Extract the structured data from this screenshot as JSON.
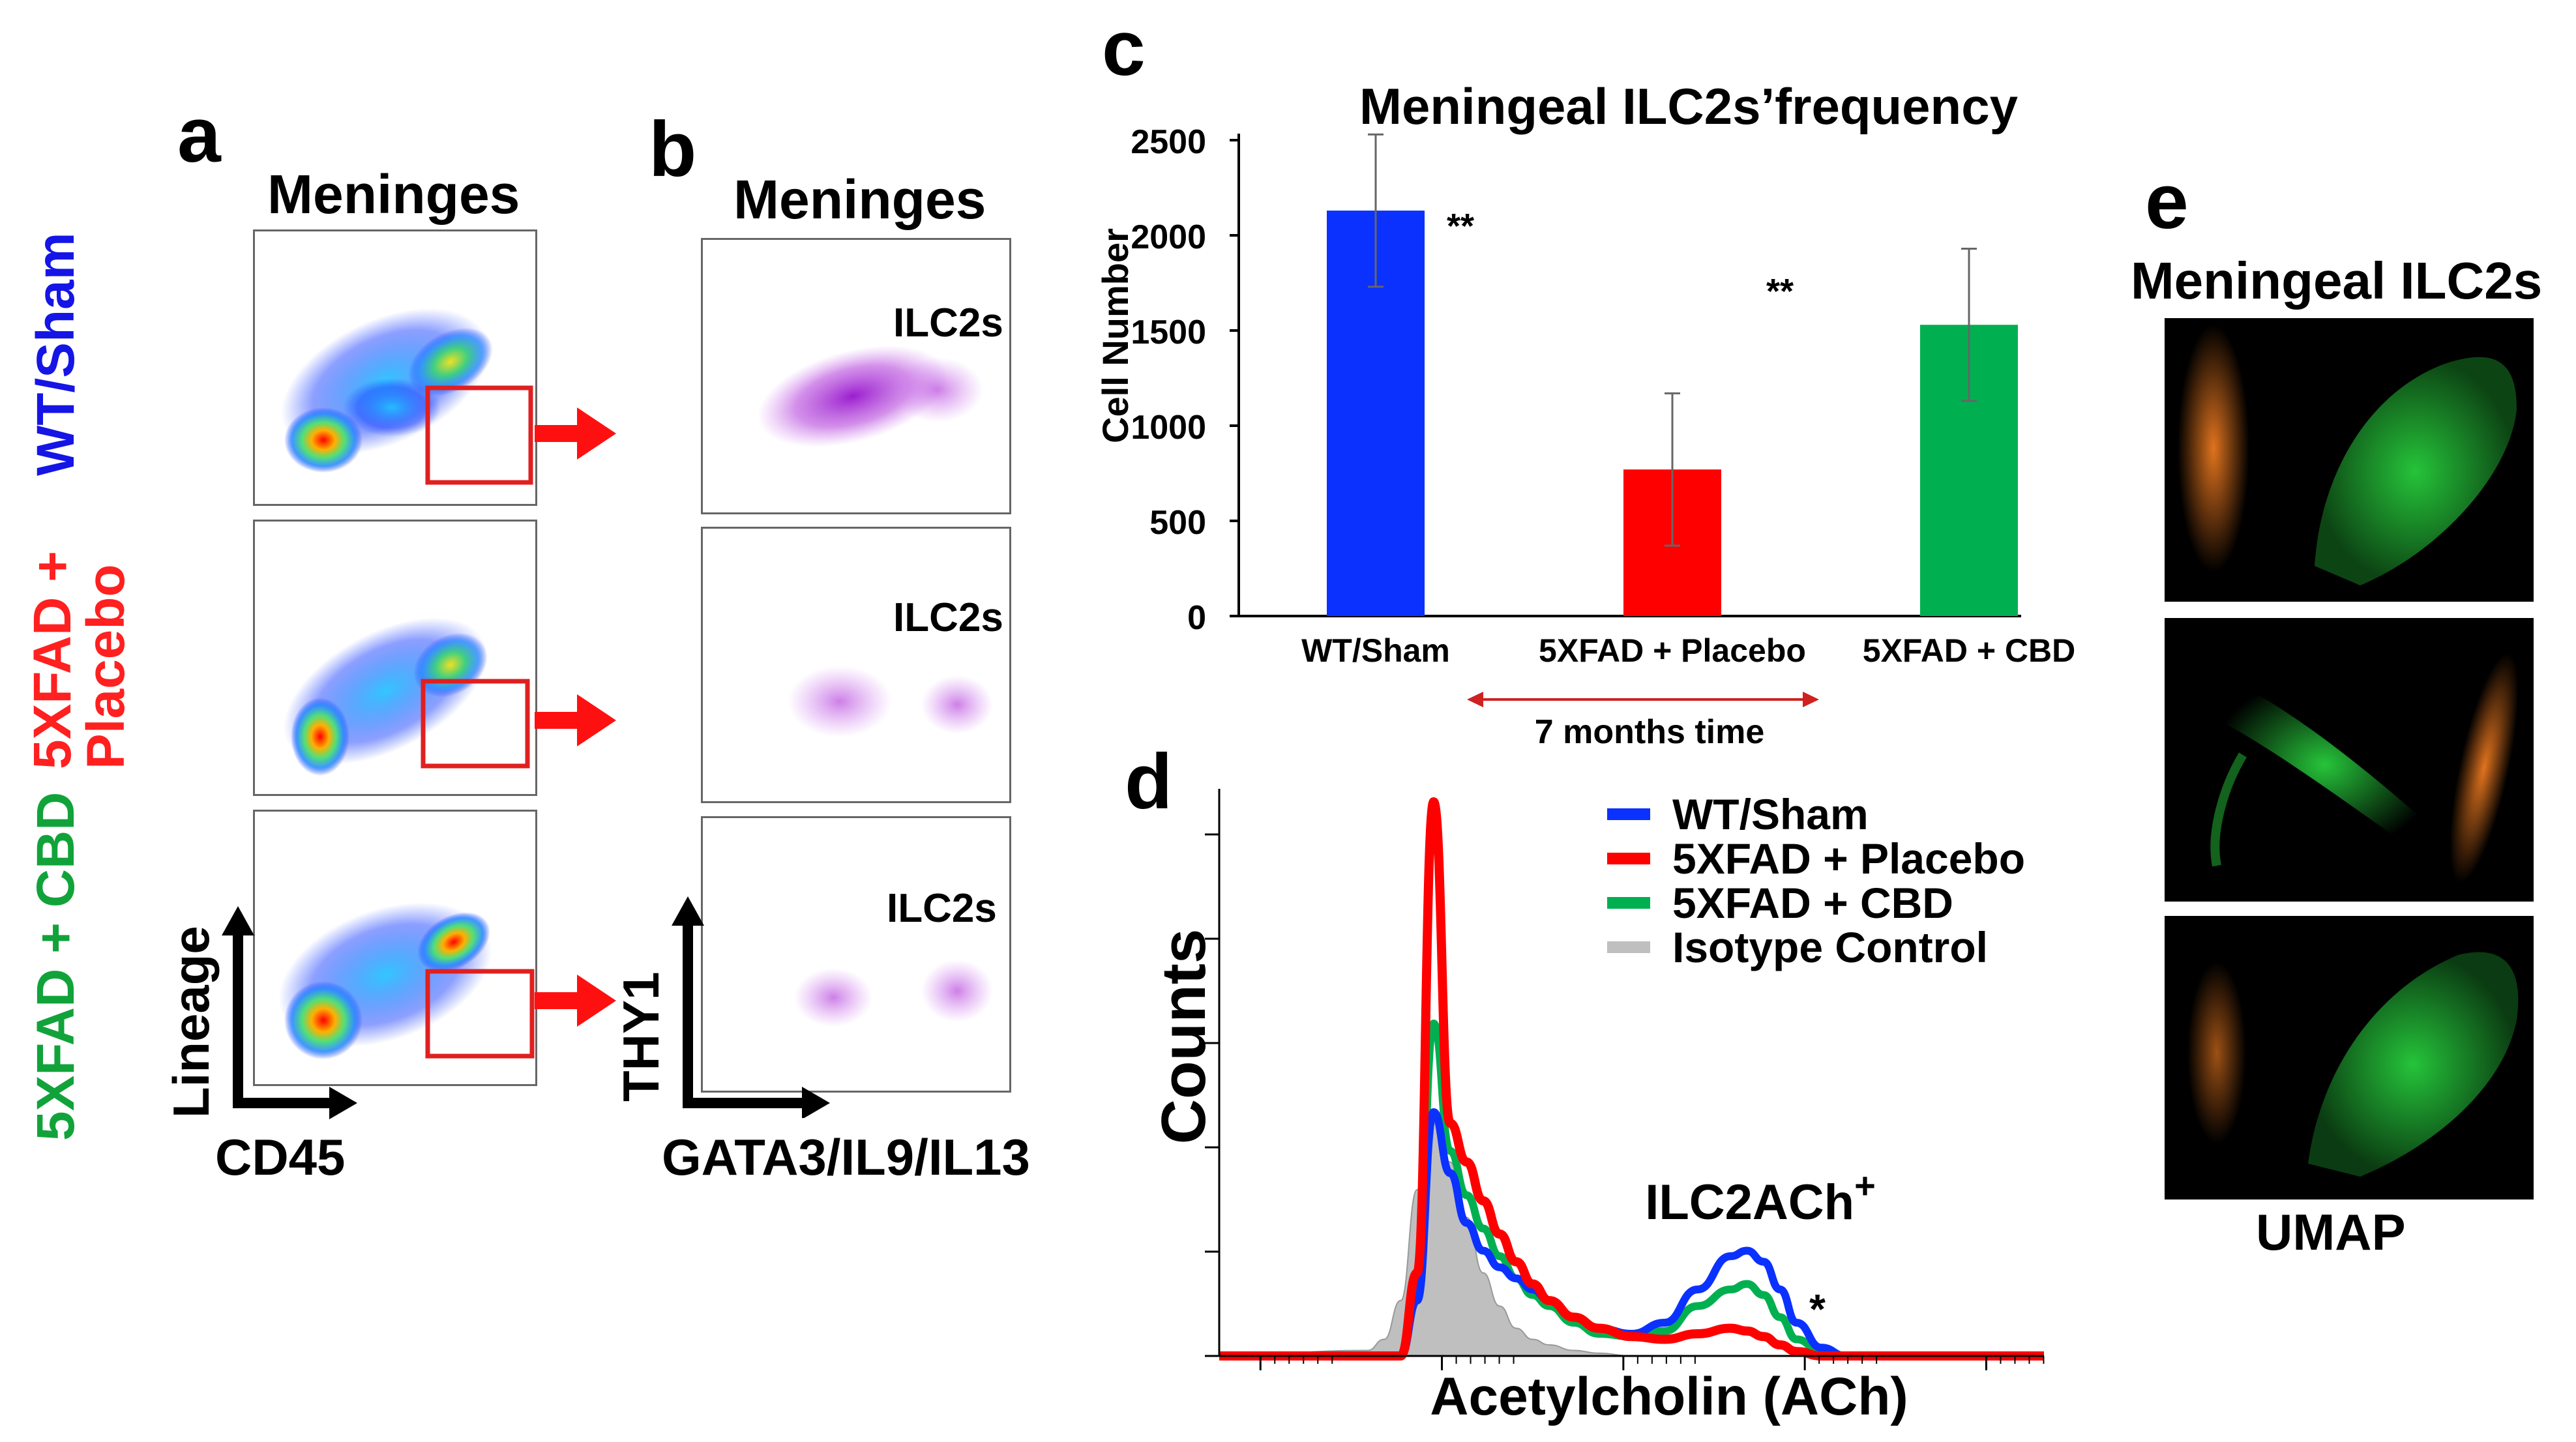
{
  "panels": {
    "a": {
      "letter": "a",
      "title": "Meninges",
      "x_axis": "CD45",
      "y_axis": "Lineage"
    },
    "b": {
      "letter": "b",
      "title": "Meninges",
      "x_axis": "GATA3/IL9/IL13",
      "y_axis": "THY1",
      "gate_label": "ILC2s"
    },
    "c": {
      "letter": "c"
    },
    "d": {
      "letter": "d"
    },
    "e": {
      "letter": "e",
      "title": "Meningeal ILC2s",
      "x_axis": "UMAP"
    }
  },
  "groups": [
    {
      "label_line1": "WT/Sham",
      "label_line2": "",
      "color": "#1515e6"
    },
    {
      "label_line1": "5XFAD +",
      "label_line2": "Placebo",
      "color": "#ff2020"
    },
    {
      "label_line1": "5XFAD + CBD",
      "label_line2": "",
      "color": "#11a33a"
    }
  ],
  "colors": {
    "blue": "#0b31ff",
    "red": "#ff0000",
    "green": "#00b050",
    "gray": "#bfbfbf",
    "gate": "#e02020",
    "purple": "#a33cd6",
    "umap_orange": "#e0731e",
    "umap_green": "#26c43a"
  },
  "chart_data": [
    {
      "type": "bar",
      "title": "Meningeal ILC2s’frequency",
      "ylabel": "Cell Number",
      "xlabel": "",
      "ylim": [
        0,
        2500
      ],
      "yticks": [
        0,
        500,
        1000,
        1500,
        2000,
        2500
      ],
      "categories": [
        "WT/Sham",
        "5XFAD + Placebo",
        "5XFAD + CBD"
      ],
      "values": [
        2130,
        770,
        1530
      ],
      "errors": [
        400,
        400,
        400
      ],
      "bar_colors": [
        "#0b31ff",
        "#ff0000",
        "#00b050"
      ],
      "significance": [
        {
          "label": "**",
          "between": [
            "WT/Sham",
            "5XFAD + Placebo"
          ]
        },
        {
          "label": "**",
          "between": [
            "5XFAD + Placebo",
            "5XFAD + CBD"
          ]
        }
      ],
      "annotation": "7 months time"
    },
    {
      "type": "line",
      "title": "",
      "xlabel": "Acetylcholin (ACh)",
      "ylabel": "Counts",
      "peak_label": "ILC2ACh",
      "peak_label_sup": "+",
      "significance": "*",
      "x": [
        0.0,
        0.18,
        0.2,
        0.22,
        0.24,
        0.26,
        0.28,
        0.3,
        0.32,
        0.34,
        0.36,
        0.38,
        0.4,
        0.43,
        0.46,
        0.5,
        0.54,
        0.58,
        0.62,
        0.64,
        0.66,
        0.68,
        0.7,
        0.73,
        0.76,
        0.8,
        0.88,
        1.0
      ],
      "series": [
        {
          "name": "WT/Sham",
          "color": "#0b31ff",
          "values": [
            0,
            0,
            0,
            0,
            0.1,
            0.44,
            0.33,
            0.24,
            0.19,
            0.16,
            0.14,
            0.12,
            0.1,
            0.07,
            0.05,
            0.04,
            0.06,
            0.12,
            0.18,
            0.19,
            0.17,
            0.12,
            0.06,
            0.015,
            0,
            0,
            0,
            0
          ]
        },
        {
          "name": "5XFAD + Placebo",
          "color": "#ff0000",
          "values": [
            0,
            0,
            0,
            0,
            0.15,
            1.0,
            0.42,
            0.35,
            0.28,
            0.22,
            0.17,
            0.13,
            0.1,
            0.07,
            0.05,
            0.035,
            0.03,
            0.04,
            0.05,
            0.045,
            0.035,
            0.02,
            0.008,
            0,
            0,
            0,
            0,
            0
          ]
        },
        {
          "name": "5XFAD + CBD",
          "color": "#00b050",
          "values": [
            0,
            0,
            0,
            0,
            0.11,
            0.6,
            0.37,
            0.29,
            0.23,
            0.18,
            0.14,
            0.11,
            0.09,
            0.06,
            0.04,
            0.035,
            0.045,
            0.09,
            0.12,
            0.13,
            0.11,
            0.07,
            0.03,
            0.008,
            0,
            0,
            0,
            0
          ]
        },
        {
          "name": "Isotype Control",
          "color": "#bfbfbf",
          "values": [
            0,
            0.01,
            0.03,
            0.1,
            0.3,
            0.42,
            0.35,
            0.25,
            0.15,
            0.09,
            0.05,
            0.03,
            0.02,
            0.01,
            0.005,
            0,
            0,
            0,
            0,
            0,
            0,
            0,
            0,
            0,
            0,
            0,
            0,
            0
          ]
        }
      ]
    }
  ]
}
